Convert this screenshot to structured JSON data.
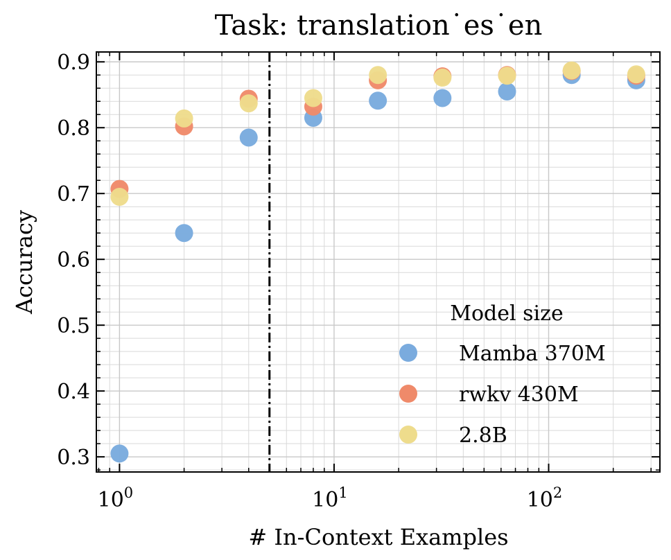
{
  "chart_data": {
    "type": "scatter",
    "title": "Task: translation˙es˙en",
    "xlabel": "# In-Context Examples",
    "ylabel": "Accuracy",
    "xscale": "log",
    "xlim": [
      0.78,
      330
    ],
    "ylim": [
      0.277,
      0.915
    ],
    "x_ticks": [
      {
        "value": 1,
        "base": "10",
        "exp": "0"
      },
      {
        "value": 10,
        "base": "10",
        "exp": "1"
      },
      {
        "value": 100,
        "base": "10",
        "exp": "2"
      }
    ],
    "y_ticks": [
      "0.3",
      "0.4",
      "0.5",
      "0.6",
      "0.7",
      "0.8",
      "0.9"
    ],
    "grid": true,
    "vline": {
      "x": 5,
      "style": "dash-dot",
      "color": "#000000"
    },
    "legend": {
      "title": "Model size",
      "placement": "lower-right"
    },
    "series": [
      {
        "name": "Mamba 370M",
        "color": "#7aabde",
        "x": [
          1,
          2,
          4,
          8,
          16,
          32,
          64,
          128,
          256
        ],
        "y": [
          0.305,
          0.64,
          0.785,
          0.815,
          0.841,
          0.845,
          0.855,
          0.88,
          0.872
        ]
      },
      {
        "name": "rwkv 430M",
        "color": "#ef8a6a",
        "x": [
          1,
          2,
          4,
          8,
          16,
          32,
          64,
          128,
          256
        ],
        "y": [
          0.707,
          0.802,
          0.844,
          0.832,
          0.872,
          0.878,
          0.88,
          0.886,
          0.879
        ]
      },
      {
        "name": "2.8B",
        "color": "#eedc8c",
        "x": [
          1,
          2,
          4,
          8,
          16,
          32,
          64,
          128,
          256
        ],
        "y": [
          0.695,
          0.814,
          0.837,
          0.845,
          0.88,
          0.876,
          0.879,
          0.887,
          0.881
        ]
      }
    ]
  }
}
